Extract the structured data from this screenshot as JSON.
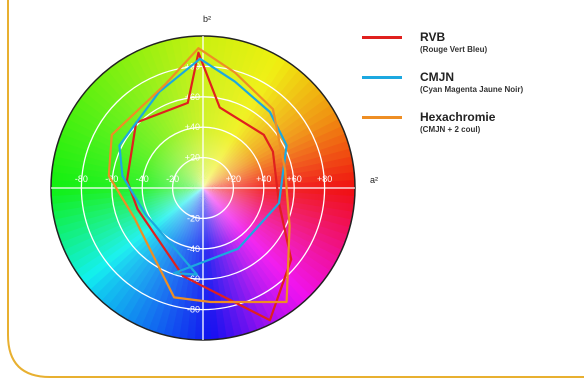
{
  "chart_data": {
    "type": "radar",
    "title": "",
    "axis_labels": {
      "a": "a²",
      "b": "b²"
    },
    "range": [
      -100,
      100
    ],
    "rings": [
      20,
      40,
      60,
      80
    ],
    "a_tick_labels": [
      "-80",
      "-60",
      "-40",
      "-20",
      "+20",
      "+40",
      "+60",
      "+80"
    ],
    "b_tick_labels": [
      "+80",
      "+60",
      "+40",
      "+20",
      "-20",
      "-40",
      "-60",
      "-80"
    ],
    "colors": {
      "frame": "#E8B030"
    },
    "series": [
      {
        "name": "RVB",
        "subtitle": "(Rouge Vert Bleu)",
        "color": "#E0201E",
        "points": [
          [
            -3,
            89
          ],
          [
            -10,
            56
          ],
          [
            -44,
            43
          ],
          [
            -50,
            5
          ],
          [
            -43,
            -14
          ],
          [
            -13,
            -58
          ],
          [
            44,
            -87
          ],
          [
            58,
            -47
          ],
          [
            50,
            -10
          ],
          [
            46,
            24
          ],
          [
            40,
            35
          ],
          [
            11,
            53
          ]
        ]
      },
      {
        "name": "CMJN",
        "subtitle": "(Cyan Magenta Jaune Noir)",
        "color": "#1CA8E0",
        "points": [
          [
            -2,
            85
          ],
          [
            -29,
            63
          ],
          [
            -55,
            28
          ],
          [
            -53,
            8
          ],
          [
            -38,
            -17
          ],
          [
            -4,
            -57
          ],
          [
            -19,
            -56
          ],
          [
            23,
            -40
          ],
          [
            50,
            -10
          ],
          [
            55,
            28
          ],
          [
            44,
            50
          ],
          [
            21,
            70
          ]
        ]
      },
      {
        "name": "Hexachromie",
        "subtitle": "(CMJN + 2 coul)",
        "color": "#EE8E24",
        "points": [
          [
            -3,
            92
          ],
          [
            -25,
            68
          ],
          [
            -60,
            35
          ],
          [
            -62,
            8
          ],
          [
            -45,
            -20
          ],
          [
            -19,
            -72
          ],
          [
            5,
            -75
          ],
          [
            55,
            -75
          ],
          [
            57,
            -25
          ],
          [
            54,
            12
          ],
          [
            46,
            52
          ],
          [
            21,
            76
          ]
        ]
      }
    ]
  }
}
